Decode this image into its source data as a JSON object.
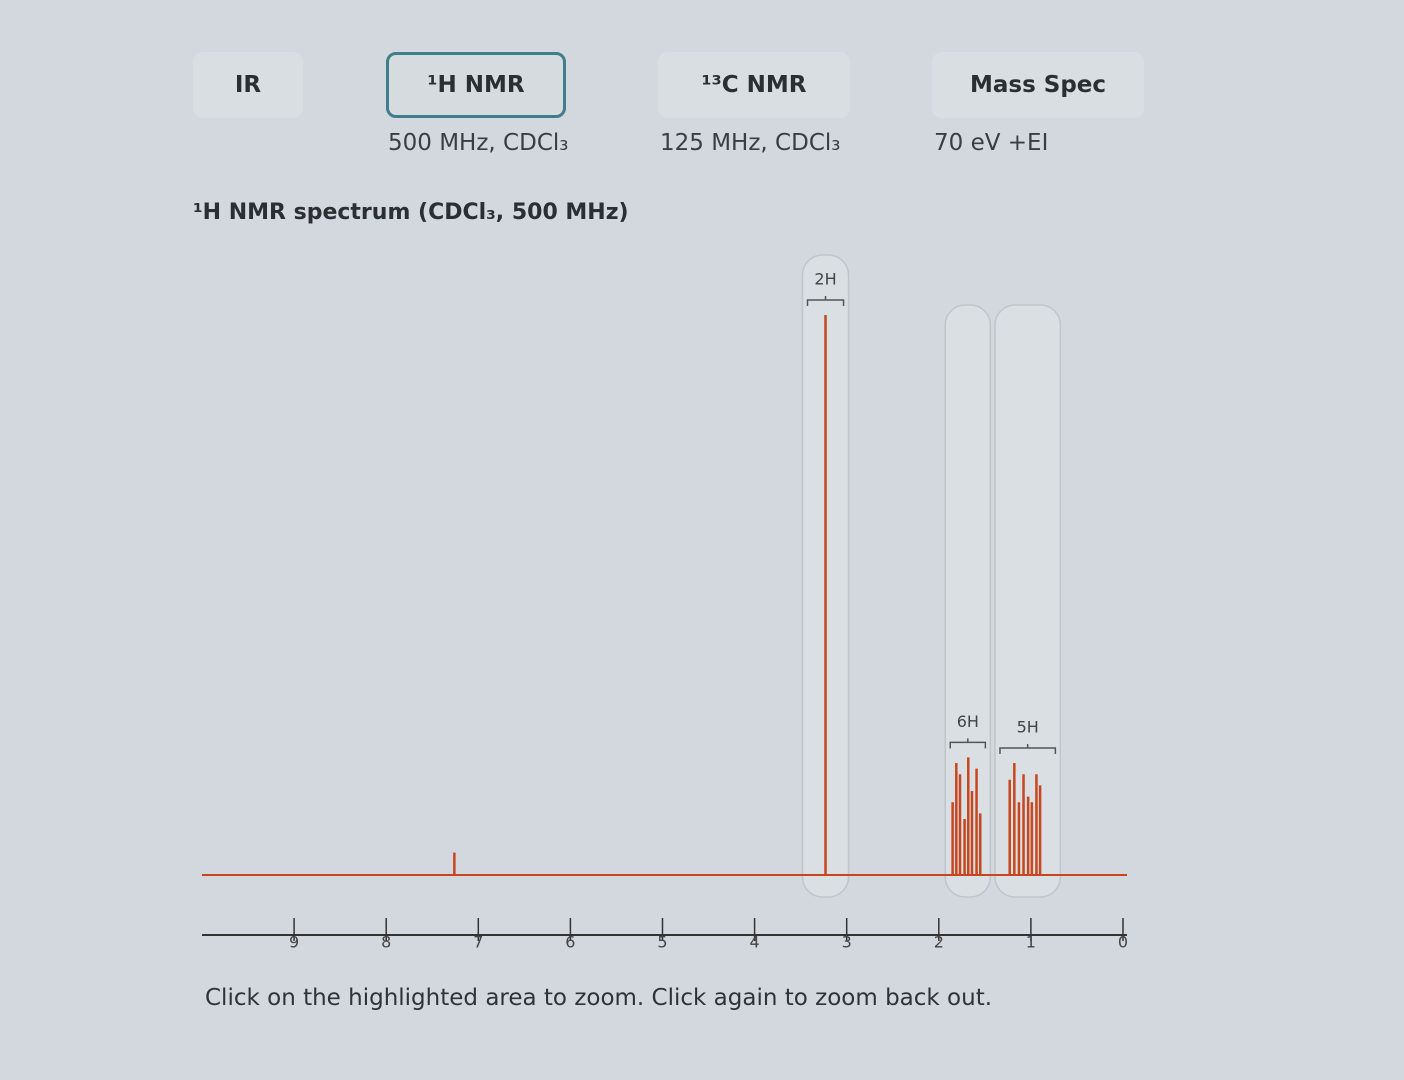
{
  "tabs": [
    {
      "label": "IR"
    },
    {
      "label": "¹H NMR",
      "subtitle": "500 MHz, CDCl₃",
      "selected": true
    },
    {
      "label": "¹³C NMR",
      "subtitle": "125 MHz, CDCl₃"
    },
    {
      "label": "Mass Spec",
      "subtitle": "70 eV +EI"
    }
  ],
  "spectrum": {
    "title": "¹H NMR spectrum (CDCl₃, 500 MHz)",
    "xlim": [
      10,
      0
    ],
    "xticks": [
      9,
      8,
      7,
      6,
      5,
      4,
      3,
      2,
      1,
      0
    ],
    "ylim": [
      0,
      100
    ],
    "color": "#c8461e",
    "peaks": [
      {
        "ppm": 7.26,
        "intensity": 4
      },
      {
        "ppm": 3.23,
        "intensity": 100
      },
      {
        "ppm": 1.85,
        "intensity": 13
      },
      {
        "ppm": 1.81,
        "intensity": 20
      },
      {
        "ppm": 1.77,
        "intensity": 18
      },
      {
        "ppm": 1.72,
        "intensity": 10
      },
      {
        "ppm": 1.68,
        "intensity": 21
      },
      {
        "ppm": 1.64,
        "intensity": 15
      },
      {
        "ppm": 1.59,
        "intensity": 19
      },
      {
        "ppm": 1.55,
        "intensity": 11
      },
      {
        "ppm": 1.23,
        "intensity": 17
      },
      {
        "ppm": 1.18,
        "intensity": 20
      },
      {
        "ppm": 1.13,
        "intensity": 13
      },
      {
        "ppm": 1.08,
        "intensity": 18
      },
      {
        "ppm": 1.03,
        "intensity": 14
      },
      {
        "ppm": 0.99,
        "intensity": 13
      },
      {
        "ppm": 0.94,
        "intensity": 18
      },
      {
        "ppm": 0.9,
        "intensity": 16
      }
    ],
    "integrations": [
      {
        "label": "2H",
        "range": [
          3.48,
          2.98
        ]
      },
      {
        "label": "6H",
        "range": [
          1.93,
          1.44
        ]
      },
      {
        "label": "5H",
        "range": [
          1.39,
          0.68
        ]
      }
    ]
  },
  "instruction": "Click on the highlighted area to zoom. Click again to zoom back out."
}
